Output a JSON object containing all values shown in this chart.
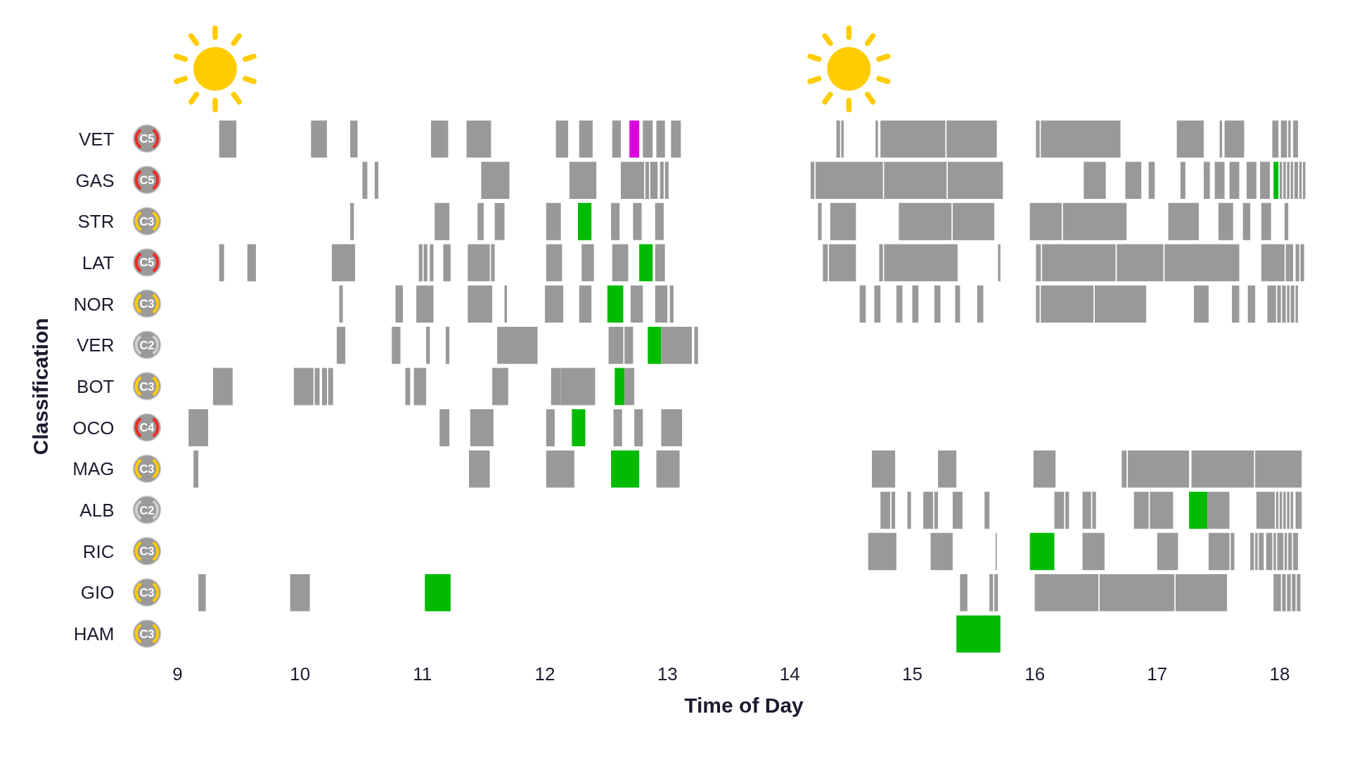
{
  "chart_data": {
    "type": "bar",
    "orientation": "horizontal",
    "xlabel": "Time of Day",
    "ylabel": "Classification",
    "categories": [
      "VET",
      "GAS",
      "STR",
      "LAT",
      "NOR",
      "VER",
      "BOT",
      "OCO",
      "MAG",
      "ALB",
      "RIC",
      "GIO",
      "HAM"
    ],
    "y2_categories": [
      "C5",
      "C5",
      "C3",
      "C5",
      "C3",
      "C2",
      "C3",
      "C4",
      "C3",
      "C2",
      "C3",
      "C3",
      "C3"
    ],
    "xlim": [
      9,
      18.25
    ],
    "xticks": [
      9,
      10,
      11,
      12,
      13,
      14,
      15,
      16,
      17,
      18
    ],
    "series": [
      {
        "colors": [
          "#dd00dd",
          "#00bb00",
          "#00bb00",
          "#00bb00",
          "#00bb00",
          "#00bb00",
          "#00bb00",
          "#00bb00",
          "#00bb00",
          "#00bb00",
          "#00bb00",
          "#00bb00",
          "#00bb00"
        ],
        "base": [
          12.69,
          17.95,
          12.27,
          12.77,
          12.51,
          12.84,
          12.57,
          12.22,
          12.54,
          17.26,
          15.96,
          11.02,
          15.36
        ],
        "values": [
          0.08,
          0.04,
          0.11,
          0.11,
          0.13,
          0.11,
          0.08,
          0.11,
          0.23,
          0.15,
          0.2,
          0.21,
          0.36
        ]
      },
      {
        "color": "#999999",
        "base": [
          9.34,
          10.51,
          10.41,
          9.34,
          10.32,
          10.3,
          9.29,
          9.09,
          9.13,
          14.74,
          14.64,
          9.17,
          null
        ],
        "values": [
          0.14,
          0.04,
          0.03,
          0.04,
          0.03,
          0.07,
          0.16,
          0.16,
          0.04,
          0.08,
          0.23,
          0.06,
          null
        ]
      },
      {
        "color": "#999999",
        "base": [
          10.09,
          10.61,
          11.1,
          9.57,
          10.78,
          10.75,
          9.95,
          11.14,
          11.38,
          14.83,
          15.15,
          9.92,
          null
        ],
        "values": [
          0.13,
          0.03,
          0.12,
          0.07,
          0.06,
          0.07,
          0.16,
          0.08,
          0.17,
          0.03,
          0.18,
          0.16,
          null
        ]
      },
      {
        "color": "#999999",
        "base": [
          10.41,
          11.48,
          11.45,
          10.26,
          10.95,
          11.03,
          10.12,
          11.39,
          12.01,
          14.96,
          15.68,
          15.39,
          null
        ],
        "values": [
          0.06,
          0.23,
          0.05,
          0.19,
          0.14,
          0.03,
          0.04,
          0.19,
          0.23,
          0.03,
          0.01,
          0.06,
          null
        ]
      },
      {
        "color": "#999999",
        "base": [
          11.07,
          12.2,
          11.59,
          10.97,
          11.37,
          11.19,
          10.18,
          12.01,
          12.91,
          15.09,
          16.39,
          15.63,
          null
        ],
        "values": [
          0.12,
          0.22,
          0.08,
          0.03,
          0.2,
          0.03,
          0.04,
          0.07,
          0.19,
          0.08,
          0.18,
          0.03,
          null
        ]
      },
      {
        "color": "#999999",
        "base": [
          11.19,
          12.62,
          12.01,
          11.01,
          11.67,
          11.61,
          10.23,
          12.56,
          14.67,
          15.18,
          17.0,
          15.67,
          null
        ],
        "values": [
          0.02,
          0.19,
          0.12,
          0.03,
          0.02,
          0.33,
          0.04,
          0.07,
          0.19,
          0.03,
          0.17,
          0.03,
          null
        ]
      },
      {
        "color": "#999999",
        "base": [
          11.36,
          12.82,
          12.54,
          11.06,
          12.0,
          12.52,
          10.86,
          12.73,
          15.21,
          15.33,
          17.42,
          16.0,
          null
        ],
        "values": [
          0.2,
          0.03,
          0.07,
          0.03,
          0.15,
          0.12,
          0.04,
          0.07,
          0.15,
          0.08,
          0.17,
          0.52,
          null
        ]
      },
      {
        "color": "#999999",
        "base": [
          12.09,
          12.86,
          12.72,
          11.17,
          12.28,
          12.65,
          10.93,
          12.95,
          15.99,
          15.59,
          17.6,
          16.53,
          null
        ],
        "values": [
          0.1,
          0.06,
          0.07,
          0.06,
          0.1,
          0.07,
          0.1,
          0.17,
          0.18,
          0.04,
          0.03,
          0.61,
          null
        ]
      },
      {
        "color": "#999999",
        "base": [
          12.28,
          12.94,
          12.9,
          11.37,
          12.7,
          12.95,
          11.57,
          null,
          16.71,
          16.16,
          17.76,
          17.15,
          null
        ],
        "values": [
          0.11,
          0.03,
          0.07,
          0.18,
          0.1,
          0.25,
          0.13,
          null,
          0.04,
          0.08,
          0.03,
          0.42,
          null
        ]
      },
      {
        "color": "#999999",
        "base": [
          12.55,
          12.98,
          14.23,
          11.56,
          12.9,
          13.22,
          12.05,
          null,
          16.76,
          16.25,
          17.8,
          17.95,
          null
        ],
        "values": [
          0.07,
          0.03,
          0.03,
          0.03,
          0.1,
          0.03,
          0.08,
          null,
          0.5,
          0.03,
          0.02,
          0.06,
          null
        ]
      },
      {
        "color": "#999999",
        "base": [
          12.8,
          14.17,
          14.33,
          12.01,
          13.02,
          null,
          12.13,
          null,
          17.28,
          16.39,
          17.83,
          18.02,
          null
        ],
        "values": [
          0.08,
          0.03,
          0.21,
          0.13,
          0.03,
          null,
          0.28,
          null,
          0.51,
          0.07,
          0.04,
          0.03,
          null
        ]
      },
      {
        "color": "#999999",
        "base": [
          12.91,
          14.21,
          14.89,
          12.3,
          14.57,
          null,
          12.65,
          null,
          17.8,
          16.47,
          17.89,
          18.06,
          null
        ],
        "values": [
          0.07,
          0.55,
          0.43,
          0.1,
          0.05,
          null,
          0.08,
          null,
          0.38,
          0.03,
          0.05,
          0.03,
          null
        ]
      },
      {
        "color": "#999999",
        "base": [
          13.03,
          14.77,
          15.33,
          12.55,
          14.69,
          null,
          null,
          null,
          null,
          16.81,
          17.95,
          18.1,
          null
        ],
        "values": [
          0.08,
          0.51,
          0.34,
          0.13,
          0.05,
          null,
          null,
          null,
          null,
          0.12,
          0.02,
          0.03,
          null
        ]
      },
      {
        "color": "#999999",
        "base": [
          14.38,
          15.29,
          15.96,
          12.9,
          14.87,
          null,
          null,
          null,
          null,
          16.94,
          17.98,
          18.14,
          null
        ],
        "values": [
          0.03,
          0.45,
          0.26,
          0.08,
          0.05,
          null,
          null,
          null,
          null,
          0.19,
          0.05,
          0.03,
          null
        ]
      },
      {
        "color": "#999999",
        "base": [
          14.42,
          16.4,
          16.23,
          14.27,
          15.0,
          null,
          null,
          null,
          null,
          17.41,
          18.04,
          null,
          null
        ],
        "values": [
          0.02,
          0.18,
          0.52,
          0.04,
          0.05,
          null,
          null,
          null,
          null,
          0.18,
          0.02,
          null,
          null
        ]
      },
      {
        "color": "#999999",
        "base": [
          14.7,
          16.74,
          17.09,
          14.32,
          15.18,
          null,
          null,
          null,
          null,
          17.81,
          18.07,
          null,
          null
        ],
        "values": [
          0.02,
          0.13,
          0.25,
          0.22,
          0.05,
          null,
          null,
          null,
          null,
          0.15,
          0.03,
          null,
          null
        ]
      },
      {
        "color": "#999999",
        "base": [
          14.74,
          16.93,
          17.5,
          14.73,
          15.35,
          null,
          null,
          null,
          null,
          17.97,
          18.11,
          null,
          null
        ],
        "values": [
          0.53,
          0.05,
          0.12,
          0.03,
          0.04,
          null,
          null,
          null,
          null,
          0.02,
          0.04,
          null,
          null
        ]
      },
      {
        "color": "#999999",
        "base": [
          15.28,
          17.19,
          17.7,
          14.77,
          15.53,
          null,
          null,
          null,
          null,
          18.0,
          null,
          null,
          null
        ],
        "values": [
          0.41,
          0.04,
          0.06,
          0.6,
          0.05,
          null,
          null,
          null,
          null,
          0.02,
          null,
          null,
          null
        ]
      },
      {
        "color": "#999999",
        "base": [
          16.01,
          17.38,
          17.85,
          15.7,
          16.01,
          null,
          null,
          null,
          null,
          18.03,
          null,
          null,
          null
        ],
        "values": [
          0.03,
          0.05,
          0.08,
          0.02,
          0.03,
          null,
          null,
          null,
          null,
          0.02,
          null,
          null,
          null
        ]
      },
      {
        "color": "#999999",
        "base": [
          16.05,
          17.47,
          18.04,
          16.01,
          16.05,
          null,
          null,
          null,
          null,
          18.06,
          null,
          null,
          null
        ],
        "values": [
          0.65,
          0.08,
          0.03,
          0.04,
          0.43,
          null,
          null,
          null,
          null,
          0.02,
          null,
          null,
          null
        ]
      },
      {
        "color": "#999999",
        "base": [
          17.16,
          17.59,
          null,
          16.06,
          16.49,
          null,
          null,
          null,
          null,
          18.09,
          null,
          null,
          null
        ],
        "values": [
          0.22,
          0.08,
          null,
          0.6,
          0.42,
          null,
          null,
          null,
          null,
          0.02,
          null,
          null,
          null
        ]
      },
      {
        "color": "#999999",
        "base": [
          17.51,
          17.73,
          null,
          16.67,
          17.3,
          null,
          null,
          null,
          null,
          18.13,
          null,
          null,
          null
        ],
        "values": [
          0.02,
          0.08,
          null,
          0.38,
          0.12,
          null,
          null,
          null,
          null,
          0.03,
          null,
          null,
          null
        ]
      },
      {
        "color": "#999999",
        "base": [
          17.55,
          17.84,
          null,
          17.06,
          17.61,
          null,
          null,
          null,
          null,
          18.16,
          null,
          null,
          null
        ],
        "values": [
          0.16,
          0.08,
          null,
          0.61,
          0.06,
          null,
          null,
          null,
          null,
          0.02,
          null,
          null,
          null
        ]
      },
      {
        "color": "#999999",
        "base": [
          17.94,
          18.0,
          null,
          17.85,
          17.74,
          null,
          null,
          null,
          null,
          null,
          null,
          null,
          null
        ],
        "values": [
          0.05,
          0.02,
          null,
          0.19,
          0.06,
          null,
          null,
          null,
          null,
          null,
          null,
          null,
          null
        ]
      },
      {
        "color": "#999999",
        "base": [
          18.01,
          18.03,
          null,
          18.05,
          17.9,
          null,
          null,
          null,
          null,
          null,
          null,
          null,
          null
        ],
        "values": [
          0.05,
          0.02,
          null,
          0.03,
          0.07,
          null,
          null,
          null,
          null,
          null,
          null,
          null,
          null
        ]
      },
      {
        "color": "#999999",
        "base": [
          18.07,
          18.06,
          null,
          18.08,
          17.98,
          null,
          null,
          null,
          null,
          null,
          null,
          null,
          null
        ],
        "values": [
          0.02,
          0.02,
          null,
          0.03,
          0.03,
          null,
          null,
          null,
          null,
          null,
          null,
          null,
          null
        ]
      },
      {
        "color": "#999999",
        "base": [
          18.11,
          18.09,
          null,
          18.13,
          18.02,
          null,
          null,
          null,
          null,
          null,
          null,
          null,
          null
        ],
        "values": [
          0.04,
          0.02,
          null,
          0.03,
          0.03,
          null,
          null,
          null,
          null,
          null,
          null,
          null,
          null
        ]
      },
      {
        "color": "#999999",
        "base": [
          null,
          18.12,
          null,
          18.17,
          18.06,
          null,
          null,
          null,
          null,
          null,
          null,
          null,
          null
        ],
        "values": [
          null,
          0.03,
          null,
          0.03,
          0.02,
          null,
          null,
          null,
          null,
          null,
          null,
          null,
          null
        ]
      },
      {
        "color": "#999999",
        "base": [
          null,
          18.16,
          null,
          null,
          18.09,
          null,
          null,
          null,
          null,
          null,
          null,
          null,
          null
        ],
        "values": [
          null,
          0.02,
          null,
          null,
          0.03,
          null,
          null,
          null,
          null,
          null,
          null,
          null,
          null
        ]
      },
      {
        "color": "#999999",
        "base": [
          null,
          18.19,
          null,
          null,
          18.13,
          null,
          null,
          null,
          null,
          null,
          null,
          null,
          null
        ],
        "values": [
          null,
          0.02,
          null,
          null,
          0.02,
          null,
          null,
          null,
          null,
          null,
          null,
          null,
          null
        ]
      }
    ]
  }
}
